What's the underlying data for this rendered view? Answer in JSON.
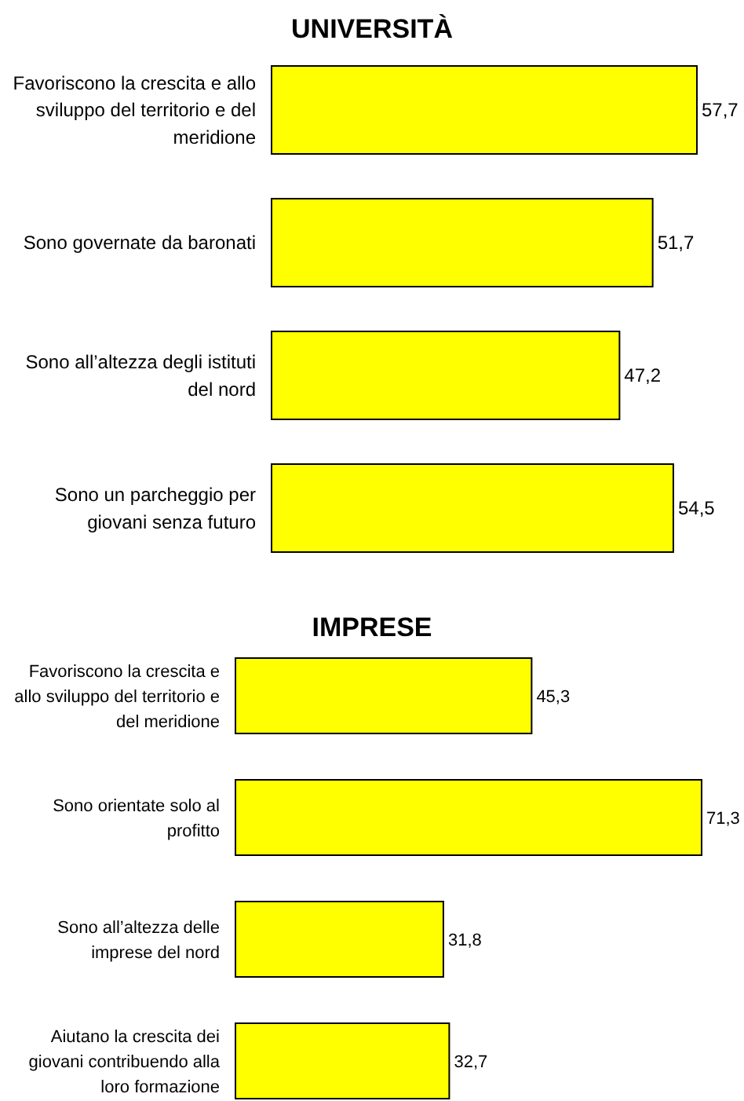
{
  "chart_data": [
    {
      "type": "bar",
      "orientation": "horizontal",
      "title": "UNIVERSITÀ",
      "categories": [
        "Favoriscono la crescita e allo sviluppo del territorio e del meridione",
        "Sono governate da baronati",
        "Sono all’altezza degli istituti del nord",
        "Sono un parcheggio per giovani senza futuro"
      ],
      "values": [
        57.7,
        51.7,
        47.2,
        54.5
      ],
      "value_labels": [
        "57,7",
        "51,7",
        "47,2",
        "54,5"
      ],
      "color": "#ffff00"
    },
    {
      "type": "bar",
      "orientation": "horizontal",
      "title": "IMPRESE",
      "categories": [
        "Favoriscono la crescita e allo sviluppo del territorio e del meridione",
        "Sono orientate solo al profitto",
        "Sono all’altezza delle imprese del nord",
        "Aiutano la crescita dei giovani contribuendo alla loro formazione"
      ],
      "values": [
        45.3,
        71.3,
        31.8,
        32.7
      ],
      "value_labels": [
        "45,3",
        "71,3",
        "31,8",
        "32,7"
      ],
      "color": "#ffff00"
    }
  ]
}
